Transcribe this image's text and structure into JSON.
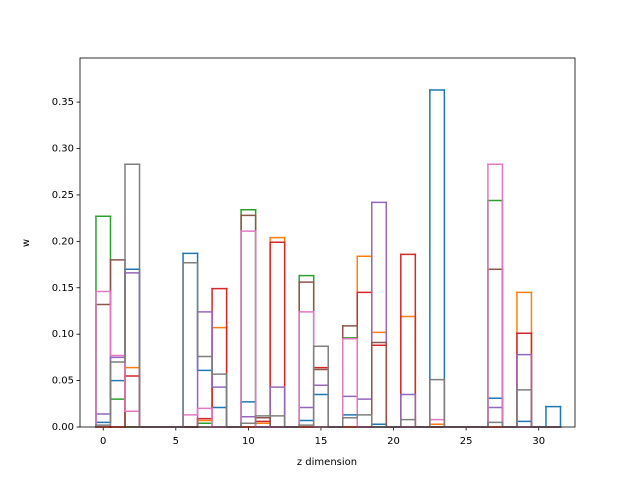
{
  "chart_data": {
    "type": "histogram",
    "xlabel": "z dimension",
    "ylabel": "w",
    "bins": [
      -0.5,
      0.5,
      1.5,
      2.5,
      3.5,
      4.5,
      5.5,
      6.5,
      7.5,
      8.5,
      9.5,
      10.5,
      11.5,
      12.5,
      13.5,
      14.5,
      15.5,
      16.5,
      17.5,
      18.5,
      19.5,
      20.5,
      21.5,
      22.5,
      23.5,
      24.5,
      25.5,
      26.5,
      27.5,
      28.5,
      29.5,
      30.5,
      31.5
    ],
    "series": [
      {
        "color": "#1f77b4",
        "values": [
          0.005,
          0.05,
          0.17,
          0,
          0,
          0,
          0.187,
          0.061,
          0.021,
          0,
          0.027,
          0,
          0,
          0,
          0.007,
          0.035,
          0,
          0.013,
          0,
          0.003,
          0,
          0,
          0,
          0.363,
          0,
          0,
          0,
          0.031,
          0,
          0.006,
          0,
          0.022
        ]
      },
      {
        "color": "#ff7f0e",
        "values": [
          0,
          0,
          0.064,
          0,
          0,
          0,
          0,
          0.007,
          0.107,
          0,
          0,
          0.004,
          0.204,
          0,
          0,
          0,
          0,
          0,
          0.184,
          0.102,
          0,
          0.119,
          0,
          0.003,
          0,
          0,
          0,
          0,
          0,
          0.145,
          0,
          0
        ]
      },
      {
        "color": "#2ca02c",
        "values": [
          0.227,
          0.03,
          0,
          0,
          0,
          0,
          0,
          0.004,
          0,
          0,
          0.234,
          0,
          0,
          0,
          0.163,
          0,
          0,
          0.096,
          0,
          0,
          0,
          0,
          0,
          0,
          0,
          0,
          0,
          0.244,
          0,
          0,
          0,
          0
        ]
      },
      {
        "color": "#d62728",
        "values": [
          0,
          0,
          0.055,
          0,
          0,
          0,
          0,
          0.009,
          0.149,
          0,
          0,
          0.006,
          0.199,
          0,
          0,
          0.064,
          0,
          0,
          0.145,
          0.088,
          0,
          0.186,
          0,
          0,
          0,
          0,
          0,
          0,
          0,
          0.101,
          0,
          0
        ]
      },
      {
        "color": "#9467bd",
        "values": [
          0.014,
          0.075,
          0.166,
          0,
          0,
          0,
          0,
          0.124,
          0.043,
          0,
          0.011,
          0,
          0.043,
          0,
          0.021,
          0.045,
          0,
          0.033,
          0.03,
          0.242,
          0,
          0.035,
          0,
          0,
          0,
          0,
          0,
          0.021,
          0,
          0.078,
          0,
          0
        ]
      },
      {
        "color": "#8c564b",
        "values": [
          0.132,
          0.18,
          0,
          0,
          0,
          0,
          0,
          0,
          0,
          0,
          0.228,
          0.01,
          0,
          0,
          0.156,
          0.062,
          0,
          0.109,
          0,
          0.091,
          0,
          0,
          0,
          0,
          0,
          0,
          0,
          0.17,
          0,
          0,
          0,
          0
        ]
      },
      {
        "color": "#e377c2",
        "values": [
          0.146,
          0.077,
          0.017,
          0,
          0,
          0,
          0.013,
          0.02,
          0,
          0,
          0.211,
          0,
          0,
          0,
          0.124,
          0,
          0,
          0.095,
          0,
          0,
          0,
          0,
          0,
          0.008,
          0,
          0,
          0,
          0.283,
          0,
          0,
          0,
          0
        ]
      },
      {
        "color": "#7f7f7f",
        "values": [
          0.002,
          0.07,
          0.283,
          0,
          0,
          0,
          0.177,
          0.076,
          0.057,
          0,
          0.004,
          0.012,
          0.012,
          0,
          0.002,
          0.087,
          0,
          0.01,
          0.013,
          0,
          0,
          0.008,
          0,
          0.051,
          0,
          0,
          0,
          0.005,
          0,
          0.04,
          0,
          0
        ]
      }
    ],
    "xlim": [
      -1.6,
      32.5
    ],
    "xticks": [
      0,
      5,
      10,
      15,
      20,
      25,
      30
    ],
    "ylim": [
      0,
      0.3975
    ],
    "yticks": [
      {
        "value": 0,
        "label": "0.00"
      },
      {
        "value": 0.05,
        "label": "0.05"
      },
      {
        "value": 0.1,
        "label": "0.10"
      },
      {
        "value": 0.15,
        "label": "0.15"
      },
      {
        "value": 0.2,
        "label": "0.20"
      },
      {
        "value": 0.25,
        "label": "0.25"
      },
      {
        "value": 0.3,
        "label": "0.30"
      },
      {
        "value": 0.35,
        "label": "0.35"
      }
    ]
  }
}
